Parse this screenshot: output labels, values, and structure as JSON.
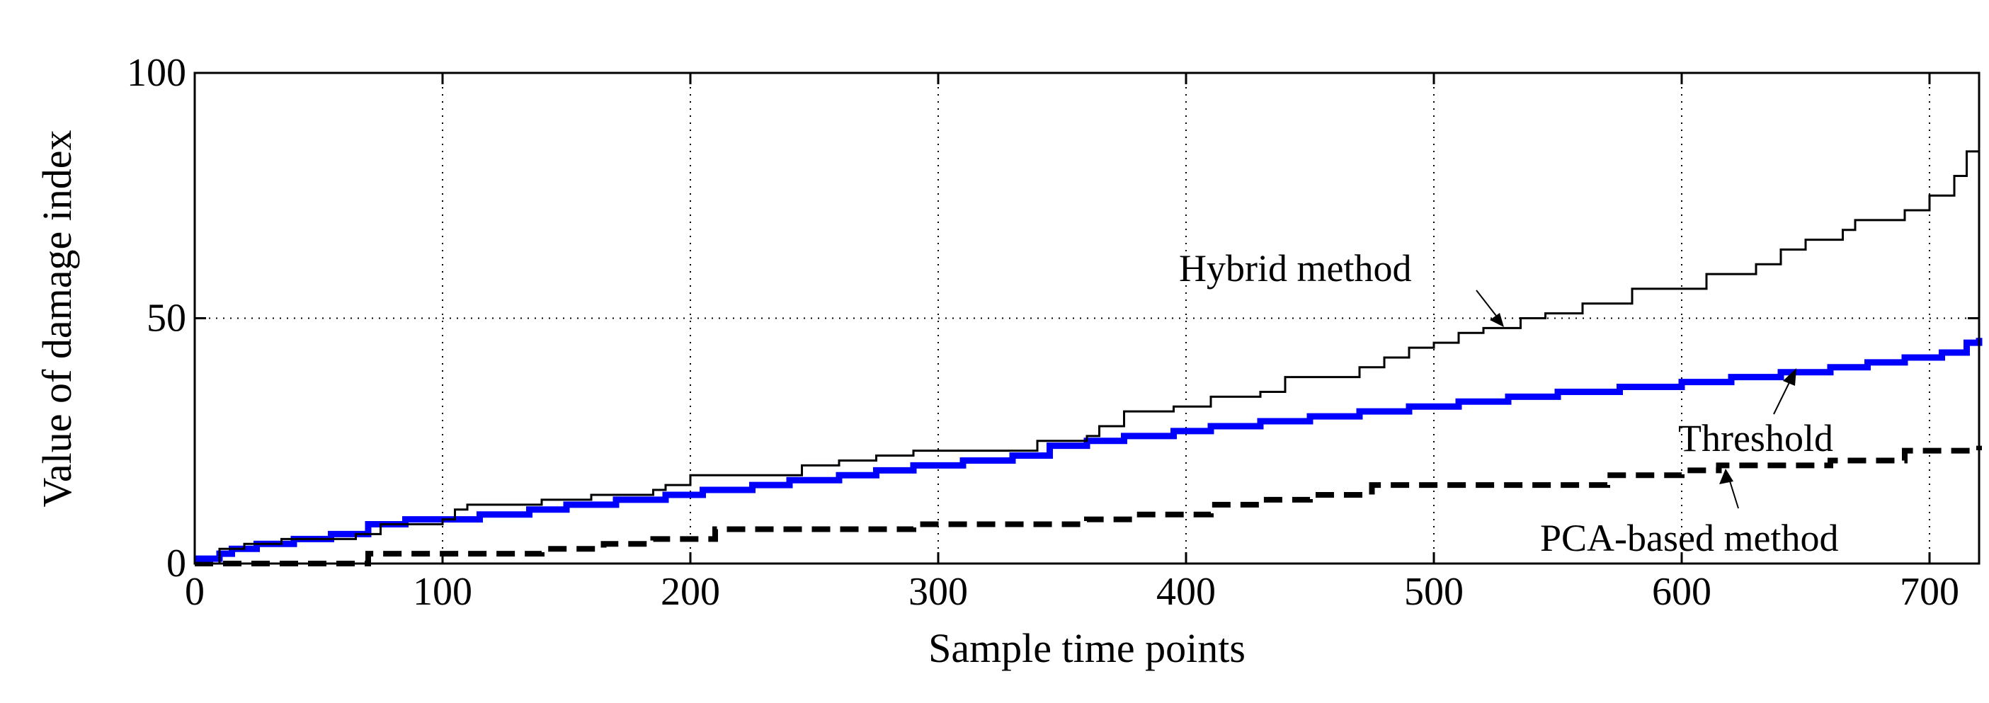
{
  "chart_data": {
    "type": "line",
    "title": "",
    "xlabel": "Sample time points",
    "ylabel": "Value of damage index",
    "xlim": [
      0,
      720
    ],
    "ylim": [
      0,
      100
    ],
    "xticks": [
      0,
      100,
      200,
      300,
      400,
      500,
      600,
      700
    ],
    "yticks": [
      0,
      50,
      100
    ],
    "grid": true,
    "legend": "none (inline annotations with arrows)",
    "series": [
      {
        "name": "Hybrid method",
        "style": "solid thin black",
        "color": "#000000",
        "points": [
          [
            0,
            0
          ],
          [
            10,
            3
          ],
          [
            20,
            4
          ],
          [
            35,
            5
          ],
          [
            65,
            6
          ],
          [
            75,
            8
          ],
          [
            100,
            9
          ],
          [
            105,
            11
          ],
          [
            110,
            12
          ],
          [
            140,
            13
          ],
          [
            160,
            14
          ],
          [
            185,
            15
          ],
          [
            190,
            16
          ],
          [
            200,
            18
          ],
          [
            240,
            18
          ],
          [
            245,
            20
          ],
          [
            260,
            21
          ],
          [
            275,
            22
          ],
          [
            290,
            23
          ],
          [
            320,
            23
          ],
          [
            340,
            25
          ],
          [
            360,
            26
          ],
          [
            365,
            28
          ],
          [
            375,
            31
          ],
          [
            395,
            32
          ],
          [
            410,
            34
          ],
          [
            430,
            35
          ],
          [
            440,
            38
          ],
          [
            460,
            38
          ],
          [
            470,
            40
          ],
          [
            480,
            42
          ],
          [
            490,
            44
          ],
          [
            500,
            45
          ],
          [
            510,
            47
          ],
          [
            520,
            48
          ],
          [
            535,
            50
          ],
          [
            545,
            51
          ],
          [
            560,
            53
          ],
          [
            580,
            56
          ],
          [
            600,
            56
          ],
          [
            610,
            59
          ],
          [
            630,
            61
          ],
          [
            640,
            64
          ],
          [
            650,
            66
          ],
          [
            665,
            68
          ],
          [
            670,
            70
          ],
          [
            690,
            72
          ],
          [
            700,
            75
          ],
          [
            710,
            79
          ],
          [
            715,
            84
          ],
          [
            720,
            85
          ]
        ]
      },
      {
        "name": "Threshold",
        "style": "solid thick blue",
        "color": "#0000ff",
        "points": [
          [
            0,
            1
          ],
          [
            10,
            2
          ],
          [
            15,
            3
          ],
          [
            25,
            4
          ],
          [
            40,
            5
          ],
          [
            55,
            6
          ],
          [
            70,
            8
          ],
          [
            85,
            9
          ],
          [
            100,
            9
          ],
          [
            115,
            10
          ],
          [
            135,
            11
          ],
          [
            150,
            12
          ],
          [
            170,
            13
          ],
          [
            190,
            14
          ],
          [
            205,
            15
          ],
          [
            225,
            16
          ],
          [
            240,
            17
          ],
          [
            260,
            18
          ],
          [
            275,
            19
          ],
          [
            290,
            20
          ],
          [
            310,
            21
          ],
          [
            330,
            22
          ],
          [
            345,
            24
          ],
          [
            360,
            25
          ],
          [
            375,
            26
          ],
          [
            395,
            27
          ],
          [
            410,
            28
          ],
          [
            430,
            29
          ],
          [
            450,
            30
          ],
          [
            470,
            31
          ],
          [
            490,
            32
          ],
          [
            510,
            33
          ],
          [
            530,
            34
          ],
          [
            550,
            35
          ],
          [
            575,
            36
          ],
          [
            600,
            37
          ],
          [
            620,
            38
          ],
          [
            640,
            39
          ],
          [
            660,
            40
          ],
          [
            675,
            41
          ],
          [
            690,
            42
          ],
          [
            705,
            43
          ],
          [
            715,
            45
          ],
          [
            720,
            46
          ]
        ]
      },
      {
        "name": "PCA-based method",
        "style": "dashed thick black",
        "color": "#000000",
        "points": [
          [
            0,
            0
          ],
          [
            65,
            0
          ],
          [
            70,
            2
          ],
          [
            135,
            2
          ],
          [
            140,
            3
          ],
          [
            165,
            4
          ],
          [
            185,
            5
          ],
          [
            205,
            5
          ],
          [
            210,
            7
          ],
          [
            285,
            7
          ],
          [
            290,
            8
          ],
          [
            355,
            8
          ],
          [
            360,
            9
          ],
          [
            380,
            10
          ],
          [
            400,
            10
          ],
          [
            410,
            12
          ],
          [
            430,
            13
          ],
          [
            450,
            14
          ],
          [
            475,
            16
          ],
          [
            540,
            16
          ],
          [
            570,
            18
          ],
          [
            600,
            19
          ],
          [
            615,
            20
          ],
          [
            660,
            21
          ],
          [
            690,
            23
          ],
          [
            720,
            24
          ]
        ]
      }
    ],
    "annotations": [
      {
        "text": "Hybrid method",
        "arrow_to": [
          530,
          48
        ]
      },
      {
        "text": "Threshold",
        "arrow_to": [
          648,
          40
        ]
      },
      {
        "text": "PCA-based method",
        "arrow_to": [
          618,
          20
        ]
      }
    ]
  },
  "axes": {
    "xlabel": "Sample time points",
    "ylabel": "Value of damage index",
    "xticks": [
      "0",
      "100",
      "200",
      "300",
      "400",
      "500",
      "600",
      "700"
    ],
    "yticks": [
      "0",
      "50",
      "100"
    ]
  },
  "annotations": {
    "hybrid": "Hybrid method",
    "threshold": "Threshold",
    "pca": "PCA-based method"
  }
}
